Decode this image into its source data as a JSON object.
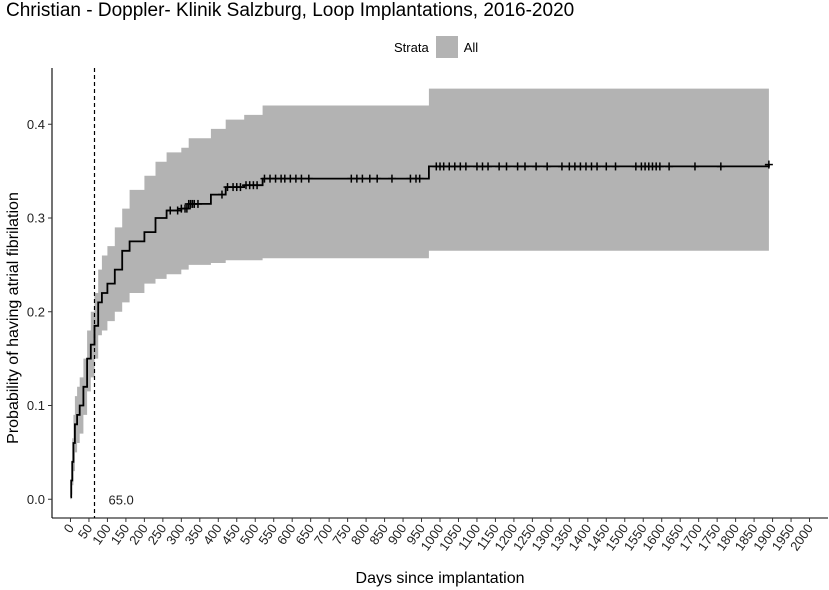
{
  "chart_data": {
    "type": "line",
    "title": "Christian - Doppler- Klinik Salzburg, Loop Implantations, 2016-2020",
    "xlabel": "Days since implantation",
    "ylabel": "Probability of having atrial fibrilation",
    "legend": {
      "title": "Strata",
      "label": "All",
      "color": "#b3b3b3",
      "placement": "top"
    },
    "xlim": [
      -50,
      2050
    ],
    "ylim": [
      -0.02,
      0.46
    ],
    "x_ticks": [
      0,
      50,
      100,
      150,
      200,
      250,
      300,
      350,
      400,
      450,
      500,
      550,
      600,
      650,
      700,
      750,
      800,
      850,
      900,
      950,
      1000,
      1050,
      1100,
      1150,
      1200,
      1250,
      1300,
      1350,
      1400,
      1450,
      1500,
      1550,
      1600,
      1650,
      1700,
      1750,
      1800,
      1850,
      1900,
      1950,
      2000
    ],
    "y_ticks": [
      0.0,
      0.1,
      0.2,
      0.3,
      0.4
    ],
    "y_tick_labels": [
      "0.0",
      "0.1",
      "0.2",
      "0.3",
      "0.4"
    ],
    "vline": {
      "x": 65,
      "style": "dashed"
    },
    "annotation": {
      "text": "65.0",
      "x": 65,
      "y": 0.0
    },
    "grid": false,
    "series": [
      {
        "line_color": "#000000",
        "ci_color": "#b3b3b3",
        "steps": [
          [
            0,
            0.002,
            0.0,
            0.01
          ],
          [
            2,
            0.02,
            0.005,
            0.04
          ],
          [
            5,
            0.04,
            0.015,
            0.065
          ],
          [
            8,
            0.06,
            0.03,
            0.09
          ],
          [
            12,
            0.08,
            0.05,
            0.11
          ],
          [
            18,
            0.09,
            0.06,
            0.12
          ],
          [
            25,
            0.1,
            0.07,
            0.13
          ],
          [
            35,
            0.12,
            0.09,
            0.15
          ],
          [
            45,
            0.15,
            0.115,
            0.18
          ],
          [
            55,
            0.165,
            0.13,
            0.2
          ],
          [
            65,
            0.185,
            0.15,
            0.22
          ],
          [
            75,
            0.21,
            0.175,
            0.245
          ],
          [
            85,
            0.22,
            0.18,
            0.26
          ],
          [
            100,
            0.23,
            0.19,
            0.27
          ],
          [
            120,
            0.245,
            0.2,
            0.29
          ],
          [
            140,
            0.265,
            0.21,
            0.31
          ],
          [
            160,
            0.275,
            0.22,
            0.33
          ],
          [
            200,
            0.285,
            0.23,
            0.345
          ],
          [
            230,
            0.3,
            0.235,
            0.36
          ],
          [
            260,
            0.308,
            0.24,
            0.37
          ],
          [
            300,
            0.31,
            0.245,
            0.375
          ],
          [
            320,
            0.315,
            0.25,
            0.385
          ],
          [
            380,
            0.325,
            0.252,
            0.395
          ],
          [
            420,
            0.333,
            0.255,
            0.405
          ],
          [
            470,
            0.335,
            0.255,
            0.41
          ],
          [
            520,
            0.342,
            0.257,
            0.42
          ],
          [
            970,
            0.355,
            0.265,
            0.438
          ],
          [
            1890,
            0.357,
            0.265,
            0.438
          ]
        ],
        "censor_x": [
          270,
          290,
          300,
          310,
          315,
          320,
          325,
          330,
          335,
          345,
          410,
          425,
          440,
          450,
          460,
          475,
          485,
          495,
          505,
          525,
          540,
          555,
          570,
          580,
          595,
          610,
          625,
          645,
          760,
          775,
          790,
          810,
          830,
          870,
          920,
          935,
          945,
          990,
          1000,
          1010,
          1025,
          1040,
          1055,
          1070,
          1100,
          1115,
          1130,
          1160,
          1180,
          1210,
          1230,
          1260,
          1290,
          1330,
          1350,
          1365,
          1380,
          1395,
          1410,
          1425,
          1450,
          1475,
          1530,
          1545,
          1555,
          1565,
          1575,
          1585,
          1595,
          1620,
          1690,
          1760,
          1890
        ]
      }
    ]
  }
}
